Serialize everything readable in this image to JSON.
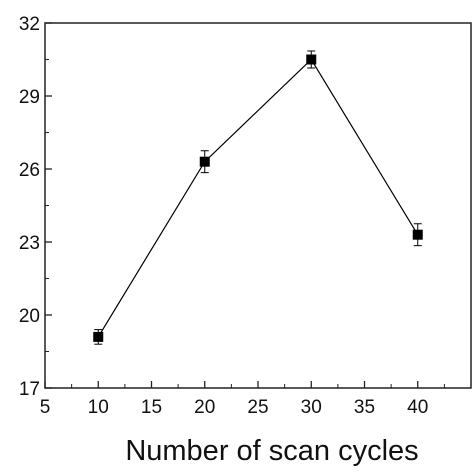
{
  "chart_data": {
    "type": "scatter",
    "title": "",
    "xlabel": "Number of scan cycles",
    "ylabel": "",
    "xlim": [
      5,
      45
    ],
    "ylim": [
      17,
      32
    ],
    "x_ticks": [
      5,
      10,
      15,
      20,
      25,
      30,
      35,
      40
    ],
    "x_tick_labels": [
      "5",
      "10",
      "15",
      "20",
      "25",
      "30",
      "35",
      "40"
    ],
    "y_ticks": [
      17,
      20,
      23,
      26,
      29,
      32
    ],
    "y_tick_labels": [
      "17",
      "20",
      "23",
      "26",
      "29",
      "32"
    ],
    "grid": false,
    "legend": false,
    "series": [
      {
        "marker": "square",
        "connected": true,
        "color": "#000000",
        "x": [
          10,
          20,
          30,
          40
        ],
        "y": [
          19.1,
          26.3,
          30.5,
          23.3
        ],
        "yerr": [
          0.3,
          0.45,
          0.35,
          0.45
        ]
      }
    ]
  }
}
